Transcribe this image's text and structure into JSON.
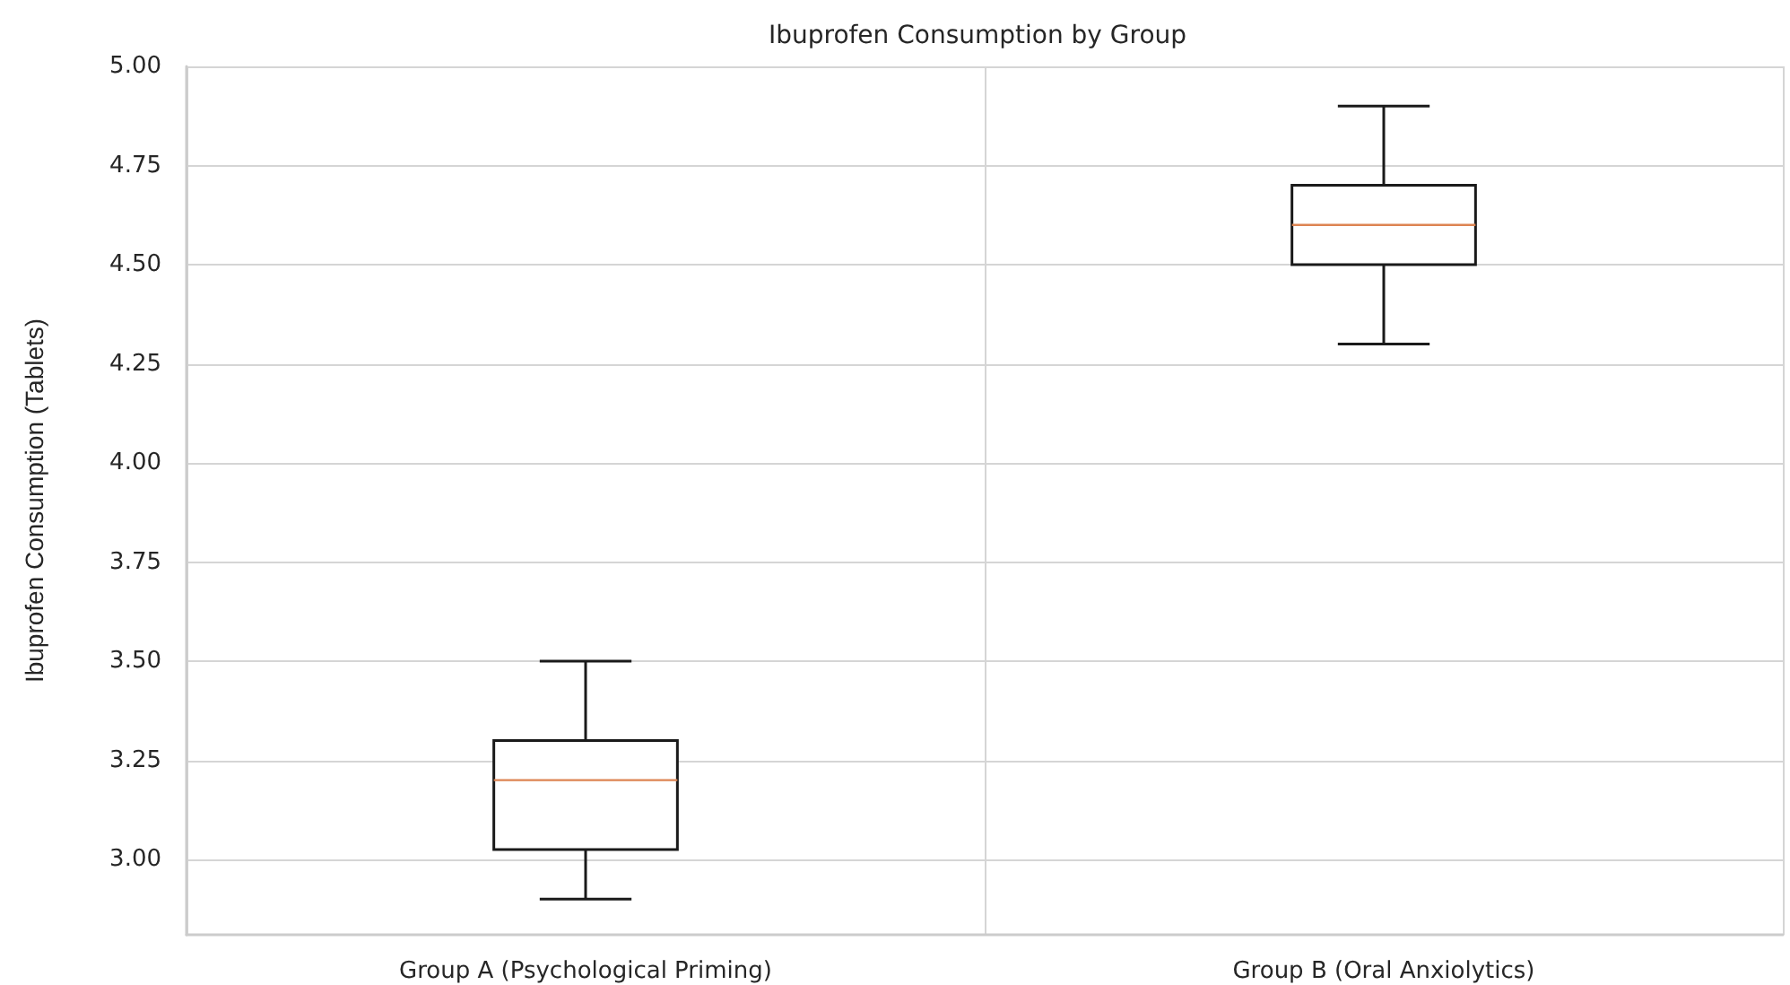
{
  "chart_data": {
    "type": "box",
    "title": "Ibuprofen Consumption by Group",
    "ylabel": "Ibuprofen Consumption (Tablets)",
    "categories": [
      "Group A (Psychological Priming)",
      "Group B (Oral Anxiolytics)"
    ],
    "boxes": [
      {
        "low": 2.9,
        "q1": 3.025,
        "median": 3.2,
        "q3": 3.3,
        "high": 3.5
      },
      {
        "low": 4.3,
        "q1": 4.5,
        "median": 4.6,
        "q3": 4.7,
        "high": 4.9
      }
    ],
    "ylim": [
      2.81,
      5.0
    ],
    "yticks": [
      {
        "value": 3,
        "label": "3.00"
      },
      3.25,
      {
        "value": 3.5,
        "label": "3.50"
      },
      3.75,
      {
        "value": 4,
        "label": "4.00"
      },
      4.25,
      {
        "value": 4.5,
        "label": "4.50"
      },
      4.75,
      {
        "value": 5,
        "label": "5.00"
      }
    ],
    "grid": true
  }
}
